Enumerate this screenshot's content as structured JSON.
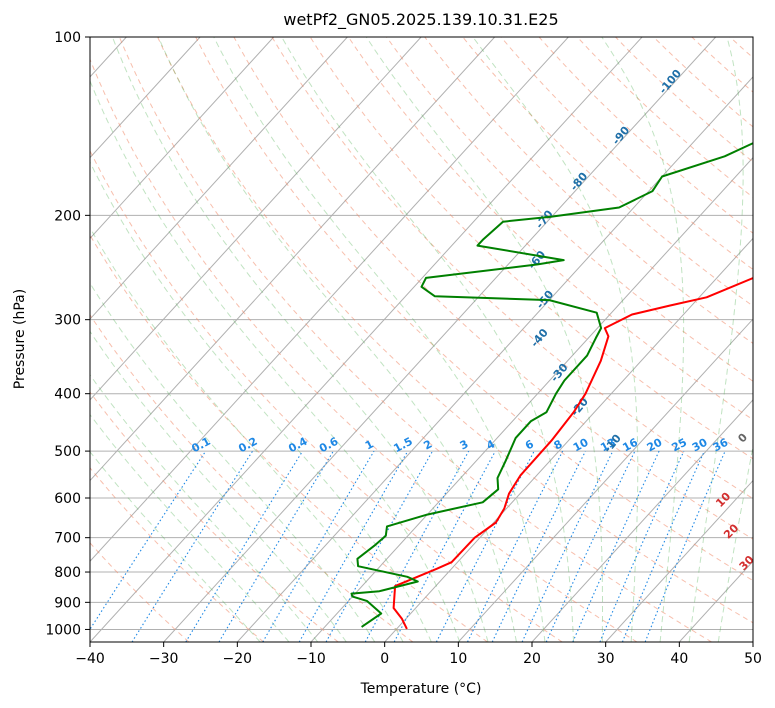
{
  "chart_data": {
    "type": "line",
    "title": "wetPf2_GN05.2025.139.10.31.E25",
    "xlabel": "Temperature (°C)",
    "ylabel": "Pressure (hPa)",
    "xlim": [
      -40,
      50
    ],
    "ylim": [
      1050,
      100
    ],
    "y_scale": "log",
    "x_ticks": [
      "−40",
      "−30",
      "−20",
      "−10",
      "0",
      "10",
      "20",
      "30",
      "40",
      "50"
    ],
    "y_ticks": [
      {
        "p": 100,
        "label": "100"
      },
      {
        "p": 200,
        "label": "200"
      },
      {
        "p": 300,
        "label": "300"
      },
      {
        "p": 400,
        "label": "400"
      },
      {
        "p": 500,
        "label": "500"
      },
      {
        "p": 600,
        "label": "600"
      },
      {
        "p": 700,
        "label": "700"
      },
      {
        "p": 800,
        "label": "800"
      },
      {
        "p": 900,
        "label": "900"
      },
      {
        "p": 1000,
        "label": "1000"
      }
    ],
    "grid": true,
    "dry_adiabat_labels": [
      "0",
      "10",
      "20",
      "30",
      "40"
    ],
    "moist_adiabat_labels": [
      "-100",
      "-90",
      "-80",
      "-70",
      "-60",
      "-50",
      "-40",
      "-30",
      "-20",
      "-10"
    ],
    "mixing_ratio_labels": [
      "0.1",
      "0.2",
      "0.4",
      "0.6",
      "1",
      "1.5",
      "2",
      "3",
      "4",
      "6",
      "8",
      "10",
      "13",
      "16",
      "20",
      "25",
      "30",
      "36"
    ],
    "series": [
      {
        "color": "#ff0000",
        "points": [
          [
            1.4,
            998
          ],
          [
            -0.5,
            960
          ],
          [
            -3.0,
            920
          ],
          [
            -5.5,
            845
          ],
          [
            -2.0,
            790
          ],
          [
            -0.8,
            770
          ],
          [
            -0.7,
            700
          ],
          [
            0.3,
            660
          ],
          [
            -0.3,
            625
          ],
          [
            -1.5,
            590
          ],
          [
            -2.2,
            550
          ],
          [
            -2.3,
            480
          ],
          [
            -2.8,
            430
          ],
          [
            -3.5,
            400
          ],
          [
            -5.5,
            352
          ],
          [
            -7.5,
            320
          ],
          [
            -9.0,
            310
          ],
          [
            -7.0,
            294
          ],
          [
            -3.0,
            284
          ],
          [
            1.0,
            275
          ],
          [
            6.0,
            250
          ],
          [
            10.0,
            228
          ],
          [
            13.0,
            210
          ],
          [
            14.5,
            200
          ],
          [
            17.0,
            180
          ],
          [
            21.0,
            160
          ],
          [
            25.5,
            140
          ],
          [
            31.0,
            120
          ],
          [
            34.5,
            110
          ],
          [
            37.0,
            102
          ]
        ]
      },
      {
        "color": "#008000",
        "points": [
          [
            -5.0,
            990
          ],
          [
            -4.0,
            940
          ],
          [
            -7.5,
            895
          ],
          [
            -10.0,
            880
          ],
          [
            -10.5,
            870
          ],
          [
            -7.0,
            862
          ],
          [
            -3.0,
            830
          ],
          [
            -5.0,
            815
          ],
          [
            -13.0,
            782
          ],
          [
            -14.0,
            760
          ],
          [
            -13.3,
            720
          ],
          [
            -13.0,
            695
          ],
          [
            -14.0,
            670
          ],
          [
            -10.0,
            640
          ],
          [
            -4.0,
            610
          ],
          [
            -3.5,
            580
          ],
          [
            -5.0,
            555
          ],
          [
            -6.0,
            520
          ],
          [
            -7.5,
            475
          ],
          [
            -7.5,
            445
          ],
          [
            -6.5,
            430
          ],
          [
            -7.5,
            400
          ],
          [
            -8.0,
            380
          ],
          [
            -8.0,
            345
          ],
          [
            -9.0,
            322
          ],
          [
            -9.5,
            310
          ],
          [
            -12.0,
            292
          ],
          [
            -20.0,
            278
          ],
          [
            -36.0,
            274
          ],
          [
            -39.0,
            264
          ],
          [
            -39.5,
            255
          ],
          [
            -26.0,
            242
          ],
          [
            -23.0,
            238
          ],
          [
            -36.5,
            225
          ],
          [
            -36.5,
            220
          ],
          [
            -36.0,
            205
          ],
          [
            -30.0,
            201
          ],
          [
            -22.0,
            194
          ],
          [
            -19.5,
            182
          ],
          [
            -20.0,
            172
          ],
          [
            -14.0,
            159
          ],
          [
            -10.0,
            145
          ],
          [
            -6.5,
            128
          ],
          [
            -3.0,
            113
          ],
          [
            -1.0,
            102
          ]
        ]
      }
    ]
  }
}
